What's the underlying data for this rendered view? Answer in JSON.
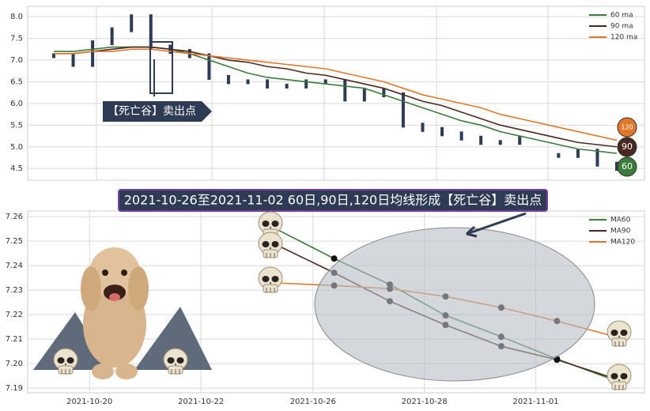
{
  "chart_data": [
    {
      "type": "line",
      "annotation": "【死亡谷】卖出点",
      "ylim": [
        4.23,
        8.24
      ],
      "yticks": [
        4.5,
        {
          "value": 5.0,
          "label": "5.0"
        },
        5.5,
        {
          "value": 6.0,
          "label": "6.0"
        },
        6.5,
        {
          "value": 7.0,
          "label": "7.0"
        },
        7.5,
        {
          "value": 8.0,
          "label": "8.0"
        }
      ],
      "grid": true,
      "legend": "upper right",
      "price": {
        "color": "#2e3b55",
        "values": [
          7.1,
          6.9,
          7.4,
          7.7,
          8.0,
          7.3,
          7.2,
          7.1,
          6.6,
          6.5,
          6.5,
          6.4,
          6.4,
          6.5,
          6.5,
          6.1,
          6.3,
          6.2,
          5.5,
          5.4,
          5.3,
          5.2,
          5.1,
          5.1,
          5.2,
          null,
          4.8,
          4.9,
          4.6,
          4.5
        ]
      },
      "series": [
        {
          "name": "60 ma",
          "color": "#3a7d3a",
          "end_label": "60",
          "values": [
            7.2,
            7.2,
            7.25,
            7.3,
            7.3,
            7.3,
            7.25,
            7.15,
            7.0,
            6.85,
            6.7,
            6.6,
            6.55,
            6.5,
            6.45,
            6.4,
            6.35,
            6.2,
            6.05,
            5.9,
            5.75,
            5.6,
            5.5,
            5.35,
            5.25,
            5.15,
            5.05,
            4.95,
            4.9,
            4.85
          ]
        },
        {
          "name": "90 ma",
          "color": "#4a2a20",
          "end_label": "90",
          "values": [
            7.15,
            7.15,
            7.2,
            7.25,
            7.3,
            7.3,
            7.25,
            7.2,
            7.1,
            7.0,
            6.95,
            6.85,
            6.8,
            6.7,
            6.65,
            6.55,
            6.45,
            6.35,
            6.2,
            6.05,
            5.95,
            5.8,
            5.65,
            5.5,
            5.4,
            5.3,
            5.2,
            5.1,
            5.05,
            5.0
          ]
        },
        {
          "name": "120 ma",
          "color": "#e0782a",
          "end_label": "120",
          "values": [
            7.15,
            7.15,
            7.2,
            7.2,
            7.25,
            7.25,
            7.2,
            7.15,
            7.1,
            7.05,
            7.0,
            6.95,
            6.9,
            6.85,
            6.8,
            6.7,
            6.6,
            6.5,
            6.35,
            6.2,
            6.1,
            6.0,
            5.9,
            5.75,
            5.65,
            5.55,
            5.45,
            5.35,
            5.25,
            5.15
          ]
        }
      ]
    },
    {
      "type": "line",
      "title": "2021-10-26至2021-11-02 60日,90日,120日均线形成【死亡谷】卖出点",
      "x": [
        0,
        1,
        2,
        3,
        4,
        5,
        6
      ],
      "xlim": [
        -4.5,
        6.57
      ],
      "xticks": [
        {
          "value": -3.39,
          "label": "2021-10-20"
        },
        {
          "value": -1.39,
          "label": "2021-10-22"
        },
        {
          "value": 0.62,
          "label": "2021-10-26"
        },
        {
          "value": 2.62,
          "label": "2021-10-28"
        },
        {
          "value": 4.62,
          "label": "2021-11-01"
        }
      ],
      "ylim": [
        7.1881,
        7.2623
      ],
      "yticks": [
        7.19,
        {
          "value": 7.2,
          "label": "7.20"
        },
        7.21,
        7.22,
        7.23,
        7.24,
        7.25,
        7.26
      ],
      "grid": true,
      "legend": "upper right",
      "series": [
        {
          "name": "MA60",
          "color": "#3a7d3a",
          "values": [
            7.2545,
            7.2429,
            7.2323,
            7.2197,
            7.211,
            7.2019,
            7.1935
          ]
        },
        {
          "name": "MA90",
          "color": "#4a2a20",
          "values": [
            7.2481,
            7.2371,
            7.2255,
            7.2158,
            7.2071,
            7.2016,
            7.1942
          ]
        },
        {
          "name": "MA120",
          "color": "#e0782a",
          "values": [
            7.2329,
            7.2319,
            7.2306,
            7.2274,
            7.2229,
            7.2174,
            7.2113
          ]
        }
      ]
    }
  ]
}
